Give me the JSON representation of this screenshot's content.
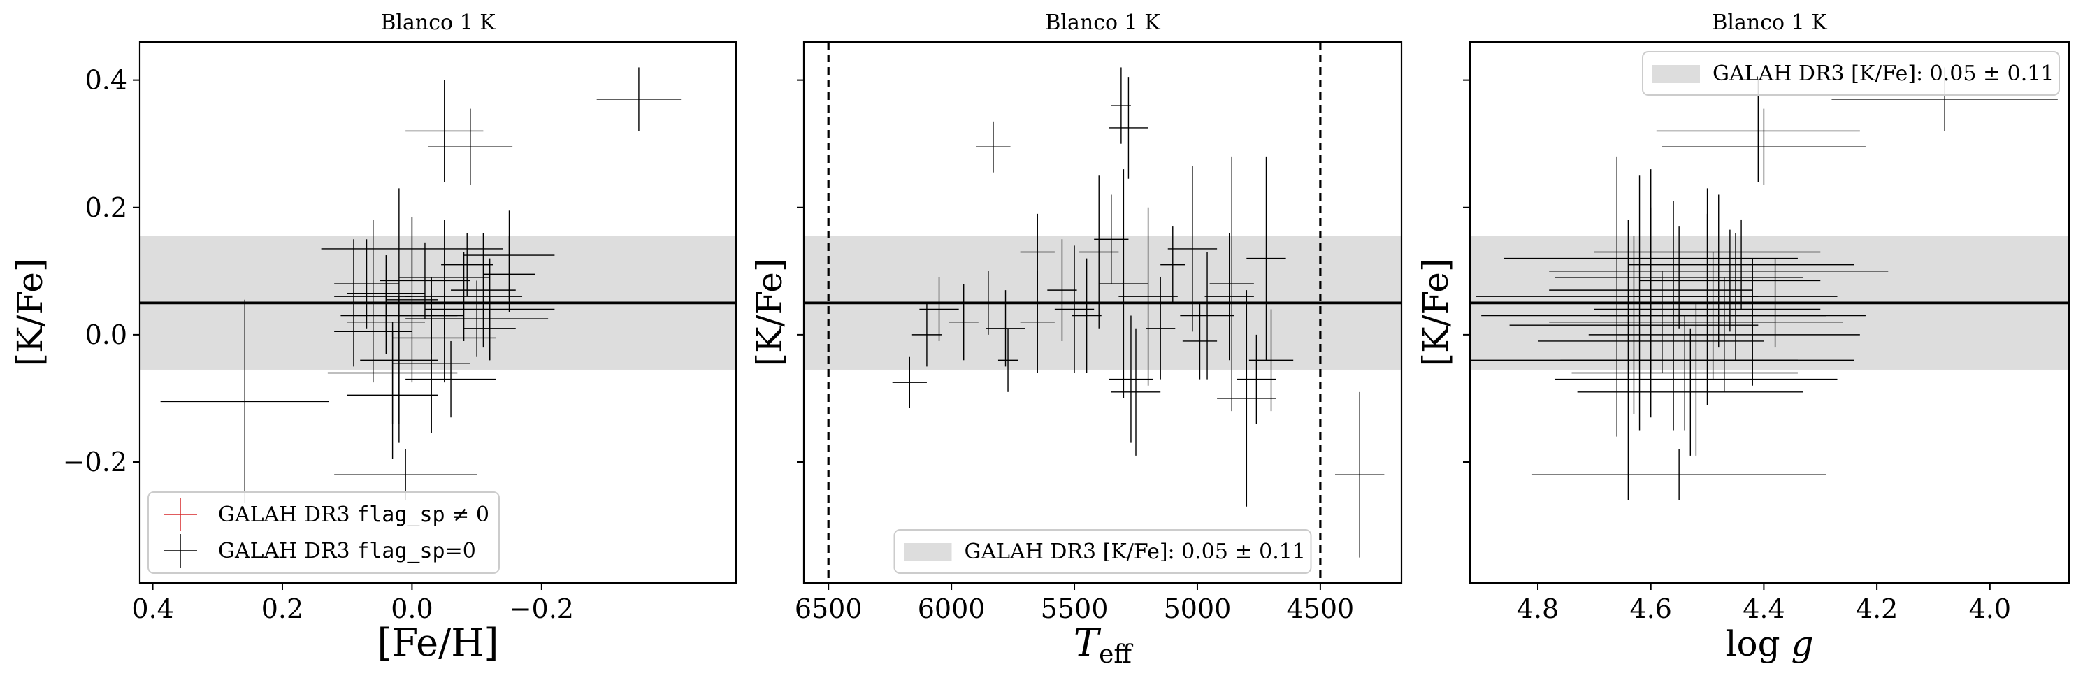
{
  "chart_data": [
    {
      "type": "scatter",
      "title": "Blanco 1 K",
      "xlabel": "[Fe/H]",
      "ylabel": "[K/Fe]",
      "xlim": [
        0.42,
        -0.5
      ],
      "ylim": [
        -0.39,
        0.46
      ],
      "x_ticks": [
        0.4,
        0.2,
        0.0,
        -0.2
      ],
      "x_tick_labels": [
        "0.4",
        "0.2",
        "0.0",
        "−0.2"
      ],
      "y_ticks": [
        0.4,
        0.2,
        0.0,
        -0.2
      ],
      "y_tick_labels": [
        "0.4",
        "0.2",
        "0.0",
        "−0.2"
      ],
      "band": {
        "center": 0.05,
        "sigma": 0.105
      },
      "legend": {
        "position": "lower-left",
        "entries": [
          {
            "pre": "GALAH DR3 ",
            "code": "flag_sp",
            "post": " ≠ 0",
            "color": "#d62728"
          },
          {
            "pre": "GALAH DR3 ",
            "code": "flag_sp",
            "post": "=0",
            "color": "#000000"
          }
        ]
      },
      "series": [
        {
          "name": "GALAH DR3 flag_sp=0",
          "color": "#000000",
          "points": [
            {
              "x": -0.35,
              "y": 0.37,
              "xerr": 0.065,
              "yerr": 0.05
            },
            {
              "x": -0.05,
              "y": 0.32,
              "xerr": 0.06,
              "yerr": 0.08
            },
            {
              "x": -0.09,
              "y": 0.295,
              "xerr": 0.065,
              "yerr": 0.06
            },
            {
              "x": 0.258,
              "y": -0.105,
              "xerr": 0.13,
              "yerr": 0.16
            },
            {
              "x": 0.0,
              "y": 0.135,
              "xerr": 0.14,
              "yerr": 0.05
            },
            {
              "x": -0.05,
              "y": 0.09,
              "xerr": 0.07,
              "yerr": 0.09
            },
            {
              "x": -0.15,
              "y": 0.125,
              "xerr": 0.07,
              "yerr": 0.07
            },
            {
              "x": -0.12,
              "y": 0.04,
              "xerr": 0.1,
              "yerr": 0.08
            },
            {
              "x": 0.06,
              "y": 0.06,
              "xerr": 0.06,
              "yerr": 0.12
            },
            {
              "x": 0.03,
              "y": -0.06,
              "xerr": 0.1,
              "yerr": 0.08
            },
            {
              "x": 0.02,
              "y": 0.03,
              "xerr": 0.09,
              "yerr": 0.2
            },
            {
              "x": 0.03,
              "y": -0.095,
              "xerr": 0.07,
              "yerr": 0.1
            },
            {
              "x": -0.03,
              "y": -0.045,
              "xerr": 0.06,
              "yerr": 0.11
            },
            {
              "x": 0.09,
              "y": 0.05,
              "xerr": 0.05,
              "yerr": 0.1
            },
            {
              "x": -0.15,
              "y": 0.095,
              "xerr": 0.04,
              "yerr": 0.06
            },
            {
              "x": 0.07,
              "y": 0.08,
              "xerr": 0.05,
              "yerr": 0.07
            },
            {
              "x": -0.02,
              "y": 0.085,
              "xerr": 0.07,
              "yerr": 0.06
            },
            {
              "x": -0.08,
              "y": 0.06,
              "xerr": 0.09,
              "yerr": 0.07
            },
            {
              "x": -0.1,
              "y": 0.025,
              "xerr": 0.11,
              "yerr": 0.06
            },
            {
              "x": 0.02,
              "y": -0.04,
              "xerr": 0.06,
              "yerr": 0.1
            },
            {
              "x": -0.05,
              "y": -0.005,
              "xerr": 0.08,
              "yerr": 0.07
            },
            {
              "x": -0.11,
              "y": 0.07,
              "xerr": 0.05,
              "yerr": 0.09
            },
            {
              "x": -0.12,
              "y": 0.01,
              "xerr": 0.04,
              "yerr": 0.05
            },
            {
              "x": -0.03,
              "y": 0.03,
              "xerr": 0.05,
              "yerr": 0.06
            },
            {
              "x": 0.04,
              "y": 0.02,
              "xerr": 0.06,
              "yerr": 0.05
            },
            {
              "x": -0.06,
              "y": -0.07,
              "xerr": 0.07,
              "yerr": 0.06
            },
            {
              "x": 0.0,
              "y": 0.055,
              "xerr": 0.04,
              "yerr": 0.13
            },
            {
              "x": 0.06,
              "y": 0.005,
              "xerr": 0.06,
              "yerr": 0.08
            },
            {
              "x": -0.085,
              "y": 0.11,
              "xerr": 0.04,
              "yerr": 0.05
            },
            {
              "x": 0.04,
              "y": 0.065,
              "xerr": 0.06,
              "yerr": 0.06
            },
            {
              "x": 0.01,
              "y": -0.22,
              "xerr": 0.11,
              "yerr": 0.04
            }
          ]
        }
      ]
    },
    {
      "type": "scatter",
      "title": "Blanco 1 K",
      "xlabel": "T_eff",
      "ylabel": "[K/Fe]",
      "xlim": [
        6600,
        4170
      ],
      "ylim": [
        -0.39,
        0.46
      ],
      "x_ticks": [
        6500,
        6000,
        5500,
        5000,
        4500
      ],
      "x_tick_labels": [
        "6500",
        "6000",
        "5500",
        "5000",
        "4500"
      ],
      "vlines": [
        6500,
        4500
      ],
      "band": {
        "center": 0.05,
        "sigma": 0.105
      },
      "legend": {
        "position": "lower-center",
        "entries": [
          {
            "pre": "GALAH DR3 [K/Fe]: 0.05 ± 0.11",
            "swatch": "#dddddd"
          }
        ]
      },
      "series": [
        {
          "name": "GALAH DR3 flag_sp=0",
          "color": "#000000",
          "points": [
            {
              "x": 5310,
              "y": 0.36,
              "xerr": 40,
              "yerr": 0.06
            },
            {
              "x": 5280,
              "y": 0.325,
              "xerr": 80,
              "yerr": 0.08
            },
            {
              "x": 5830,
              "y": 0.295,
              "xerr": 70,
              "yerr": 0.04
            },
            {
              "x": 6170,
              "y": -0.075,
              "xerr": 70,
              "yerr": 0.04
            },
            {
              "x": 4340,
              "y": -0.22,
              "xerr": 100,
              "yerr": 0.13
            },
            {
              "x": 5020,
              "y": 0.135,
              "xerr": 100,
              "yerr": 0.13
            },
            {
              "x": 4720,
              "y": 0.12,
              "xerr": 80,
              "yerr": 0.16
            },
            {
              "x": 4870,
              "y": 0.06,
              "xerr": 100,
              "yerr": 0.1
            },
            {
              "x": 4860,
              "y": 0.08,
              "xerr": 90,
              "yerr": 0.2
            },
            {
              "x": 4960,
              "y": 0.03,
              "xerr": 110,
              "yerr": 0.1
            },
            {
              "x": 5400,
              "y": 0.13,
              "xerr": 80,
              "yerr": 0.12
            },
            {
              "x": 5300,
              "y": 0.08,
              "xerr": 100,
              "yerr": 0.18
            },
            {
              "x": 5200,
              "y": 0.06,
              "xerr": 120,
              "yerr": 0.14
            },
            {
              "x": 5270,
              "y": -0.07,
              "xerr": 90,
              "yerr": 0.1
            },
            {
              "x": 5250,
              "y": -0.09,
              "xerr": 100,
              "yerr": 0.1
            },
            {
              "x": 4800,
              "y": -0.1,
              "xerr": 120,
              "yerr": 0.17
            },
            {
              "x": 4760,
              "y": -0.07,
              "xerr": 80,
              "yerr": 0.07
            },
            {
              "x": 4700,
              "y": -0.04,
              "xerr": 90,
              "yerr": 0.08
            },
            {
              "x": 5780,
              "y": 0.01,
              "xerr": 80,
              "yerr": 0.06
            },
            {
              "x": 5850,
              "y": 0.05,
              "xerr": 70,
              "yerr": 0.05
            },
            {
              "x": 6050,
              "y": 0.04,
              "xerr": 80,
              "yerr": 0.05
            },
            {
              "x": 5950,
              "y": 0.02,
              "xerr": 60,
              "yerr": 0.06
            },
            {
              "x": 5770,
              "y": -0.04,
              "xerr": 40,
              "yerr": 0.05
            },
            {
              "x": 5650,
              "y": 0.13,
              "xerr": 70,
              "yerr": 0.06
            },
            {
              "x": 5550,
              "y": 0.07,
              "xerr": 60,
              "yerr": 0.08
            },
            {
              "x": 5500,
              "y": 0.04,
              "xerr": 80,
              "yerr": 0.1
            },
            {
              "x": 5350,
              "y": 0.15,
              "xerr": 70,
              "yerr": 0.07
            },
            {
              "x": 5150,
              "y": 0.01,
              "xerr": 60,
              "yerr": 0.08
            },
            {
              "x": 5100,
              "y": 0.11,
              "xerr": 50,
              "yerr": 0.06
            },
            {
              "x": 4990,
              "y": -0.01,
              "xerr": 70,
              "yerr": 0.06
            },
            {
              "x": 5650,
              "y": 0.02,
              "xerr": 70,
              "yerr": 0.08
            },
            {
              "x": 6100,
              "y": -0.0,
              "xerr": 60,
              "yerr": 0.05
            },
            {
              "x": 5450,
              "y": 0.03,
              "xerr": 60,
              "yerr": 0.09
            }
          ]
        }
      ]
    },
    {
      "type": "scatter",
      "title": "Blanco 1 K",
      "xlabel": "log g",
      "ylabel": "[K/Fe]",
      "xlim": [
        4.92,
        3.86
      ],
      "ylim": [
        -0.39,
        0.46
      ],
      "x_ticks": [
        4.8,
        4.6,
        4.4,
        4.2,
        4.0
      ],
      "x_tick_labels": [
        "4.8",
        "4.6",
        "4.4",
        "4.2",
        "4.0"
      ],
      "band": {
        "center": 0.05,
        "sigma": 0.105
      },
      "legend": {
        "position": "upper-right",
        "entries": [
          {
            "pre": "GALAH DR3 [K/Fe]: 0.05 ± 0.11",
            "swatch": "#dddddd"
          }
        ]
      },
      "series": [
        {
          "name": "GALAH DR3 flag_sp=0",
          "color": "#000000",
          "points": [
            {
              "x": 4.08,
              "y": 0.37,
              "xerr": 0.2,
              "yerr": 0.05
            },
            {
              "x": 4.41,
              "y": 0.32,
              "xerr": 0.18,
              "yerr": 0.08
            },
            {
              "x": 4.4,
              "y": 0.295,
              "xerr": 0.18,
              "yerr": 0.06
            },
            {
              "x": 4.55,
              "y": -0.22,
              "xerr": 0.26,
              "yerr": 0.04
            },
            {
              "x": 4.6,
              "y": 0.12,
              "xerr": 0.26,
              "yerr": 0.14
            },
            {
              "x": 4.5,
              "y": 0.13,
              "xerr": 0.2,
              "yerr": 0.1
            },
            {
              "x": 4.48,
              "y": 0.1,
              "xerr": 0.3,
              "yerr": 0.12
            },
            {
              "x": 4.66,
              "y": 0.06,
              "xerr": 0.25,
              "yerr": 0.22
            },
            {
              "x": 4.62,
              "y": 0.05,
              "xerr": 0.32,
              "yerr": 0.2
            },
            {
              "x": 4.56,
              "y": 0.03,
              "xerr": 0.34,
              "yerr": 0.18
            },
            {
              "x": 4.64,
              "y": -0.04,
              "xerr": 0.3,
              "yerr": 0.22
            },
            {
              "x": 4.52,
              "y": -0.07,
              "xerr": 0.25,
              "yerr": 0.12
            },
            {
              "x": 4.5,
              "y": 0.04,
              "xerr": 0.2,
              "yerr": 0.15
            },
            {
              "x": 4.45,
              "y": 0.06,
              "xerr": 0.18,
              "yerr": 0.1
            },
            {
              "x": 4.6,
              "y": -0.01,
              "xerr": 0.2,
              "yerr": 0.12
            },
            {
              "x": 4.42,
              "y": 0.02,
              "xerr": 0.16,
              "yerr": 0.1
            },
            {
              "x": 4.55,
              "y": 0.09,
              "xerr": 0.22,
              "yerr": 0.08
            },
            {
              "x": 4.47,
              "y": 0.0,
              "xerr": 0.24,
              "yerr": 0.09
            },
            {
              "x": 4.38,
              "y": 0.05,
              "xerr": 0.2,
              "yerr": 0.07
            },
            {
              "x": 4.53,
              "y": -0.09,
              "xerr": 0.2,
              "yerr": 0.1
            },
            {
              "x": 4.44,
              "y": 0.11,
              "xerr": 0.2,
              "yerr": 0.07
            },
            {
              "x": 4.6,
              "y": 0.07,
              "xerr": 0.18,
              "yerr": 0.13
            },
            {
              "x": 4.5,
              "y": -0.04,
              "xerr": 0.26,
              "yerr": 0.07
            },
            {
              "x": 4.58,
              "y": 0.02,
              "xerr": 0.2,
              "yerr": 0.08
            },
            {
              "x": 4.46,
              "y": 0.085,
              "xerr": 0.16,
              "yerr": 0.08
            },
            {
              "x": 4.54,
              "y": -0.06,
              "xerr": 0.2,
              "yerr": 0.09
            },
            {
              "x": 4.63,
              "y": 0.015,
              "xerr": 0.22,
              "yerr": 0.14
            },
            {
              "x": 4.49,
              "y": 0.03,
              "xerr": 0.2,
              "yerr": 0.1
            }
          ]
        }
      ]
    }
  ]
}
